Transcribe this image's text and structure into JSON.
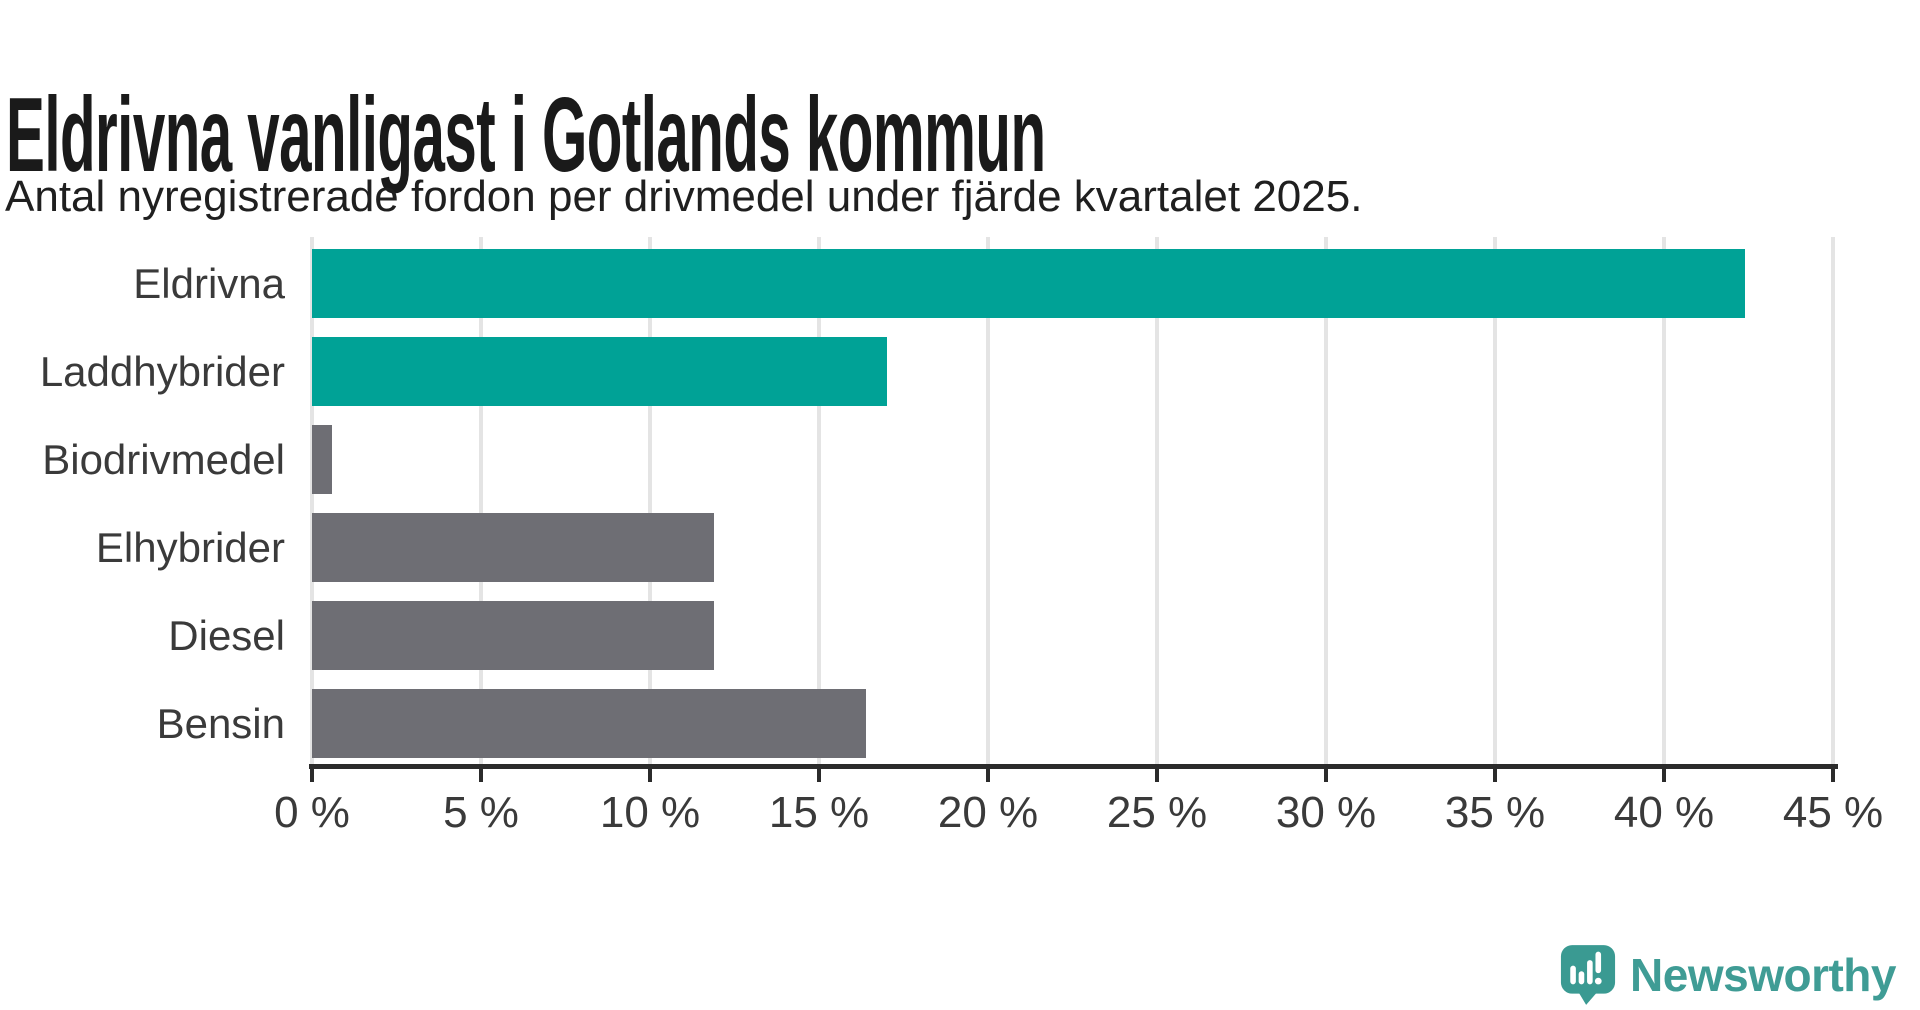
{
  "header": {
    "title": "Eldrivna vanligast i Gotlands kommun",
    "subtitle": "Antal nyregistrerade fordon per drivmedel under fjärde kvartalet 2025."
  },
  "chart_data": {
    "type": "bar",
    "orientation": "horizontal",
    "title": "Eldrivna vanligast i Gotlands kommun",
    "subtitle": "Antal nyregistrerade fordon per drivmedel under fjärde kvartalet 2025.",
    "categories": [
      "Eldrivna",
      "Laddhybrider",
      "Biodrivmedel",
      "Elhybrider",
      "Diesel",
      "Bensin"
    ],
    "values": [
      42.4,
      17.0,
      0.6,
      11.9,
      11.9,
      16.4
    ],
    "unit": "%",
    "bar_colors": [
      "#00a296",
      "#00a296",
      "#6e6e74",
      "#6e6e74",
      "#6e6e74",
      "#6e6e74"
    ],
    "x_tick_labels": [
      "0 %",
      "5 %",
      "10 %",
      "15 %",
      "20 %",
      "25 %",
      "30 %",
      "35 %",
      "40 %",
      "45 %"
    ],
    "x_tick_values": [
      0,
      5,
      10,
      15,
      20,
      25,
      30,
      35,
      40,
      45
    ],
    "xlim": [
      0,
      45
    ],
    "grid": true,
    "legend": false,
    "accent_color": "#00a296",
    "muted_color": "#6e6e74",
    "gridline_color": "#e4e4e4",
    "axis_color": "#2b2b2b",
    "label_color": "#3a3a3a"
  },
  "footer": {
    "brand": "Newsworthy",
    "brand_color": "#3f9c95",
    "logo_icon": "newsworthy-speech-bubble-bar-chart-icon"
  }
}
